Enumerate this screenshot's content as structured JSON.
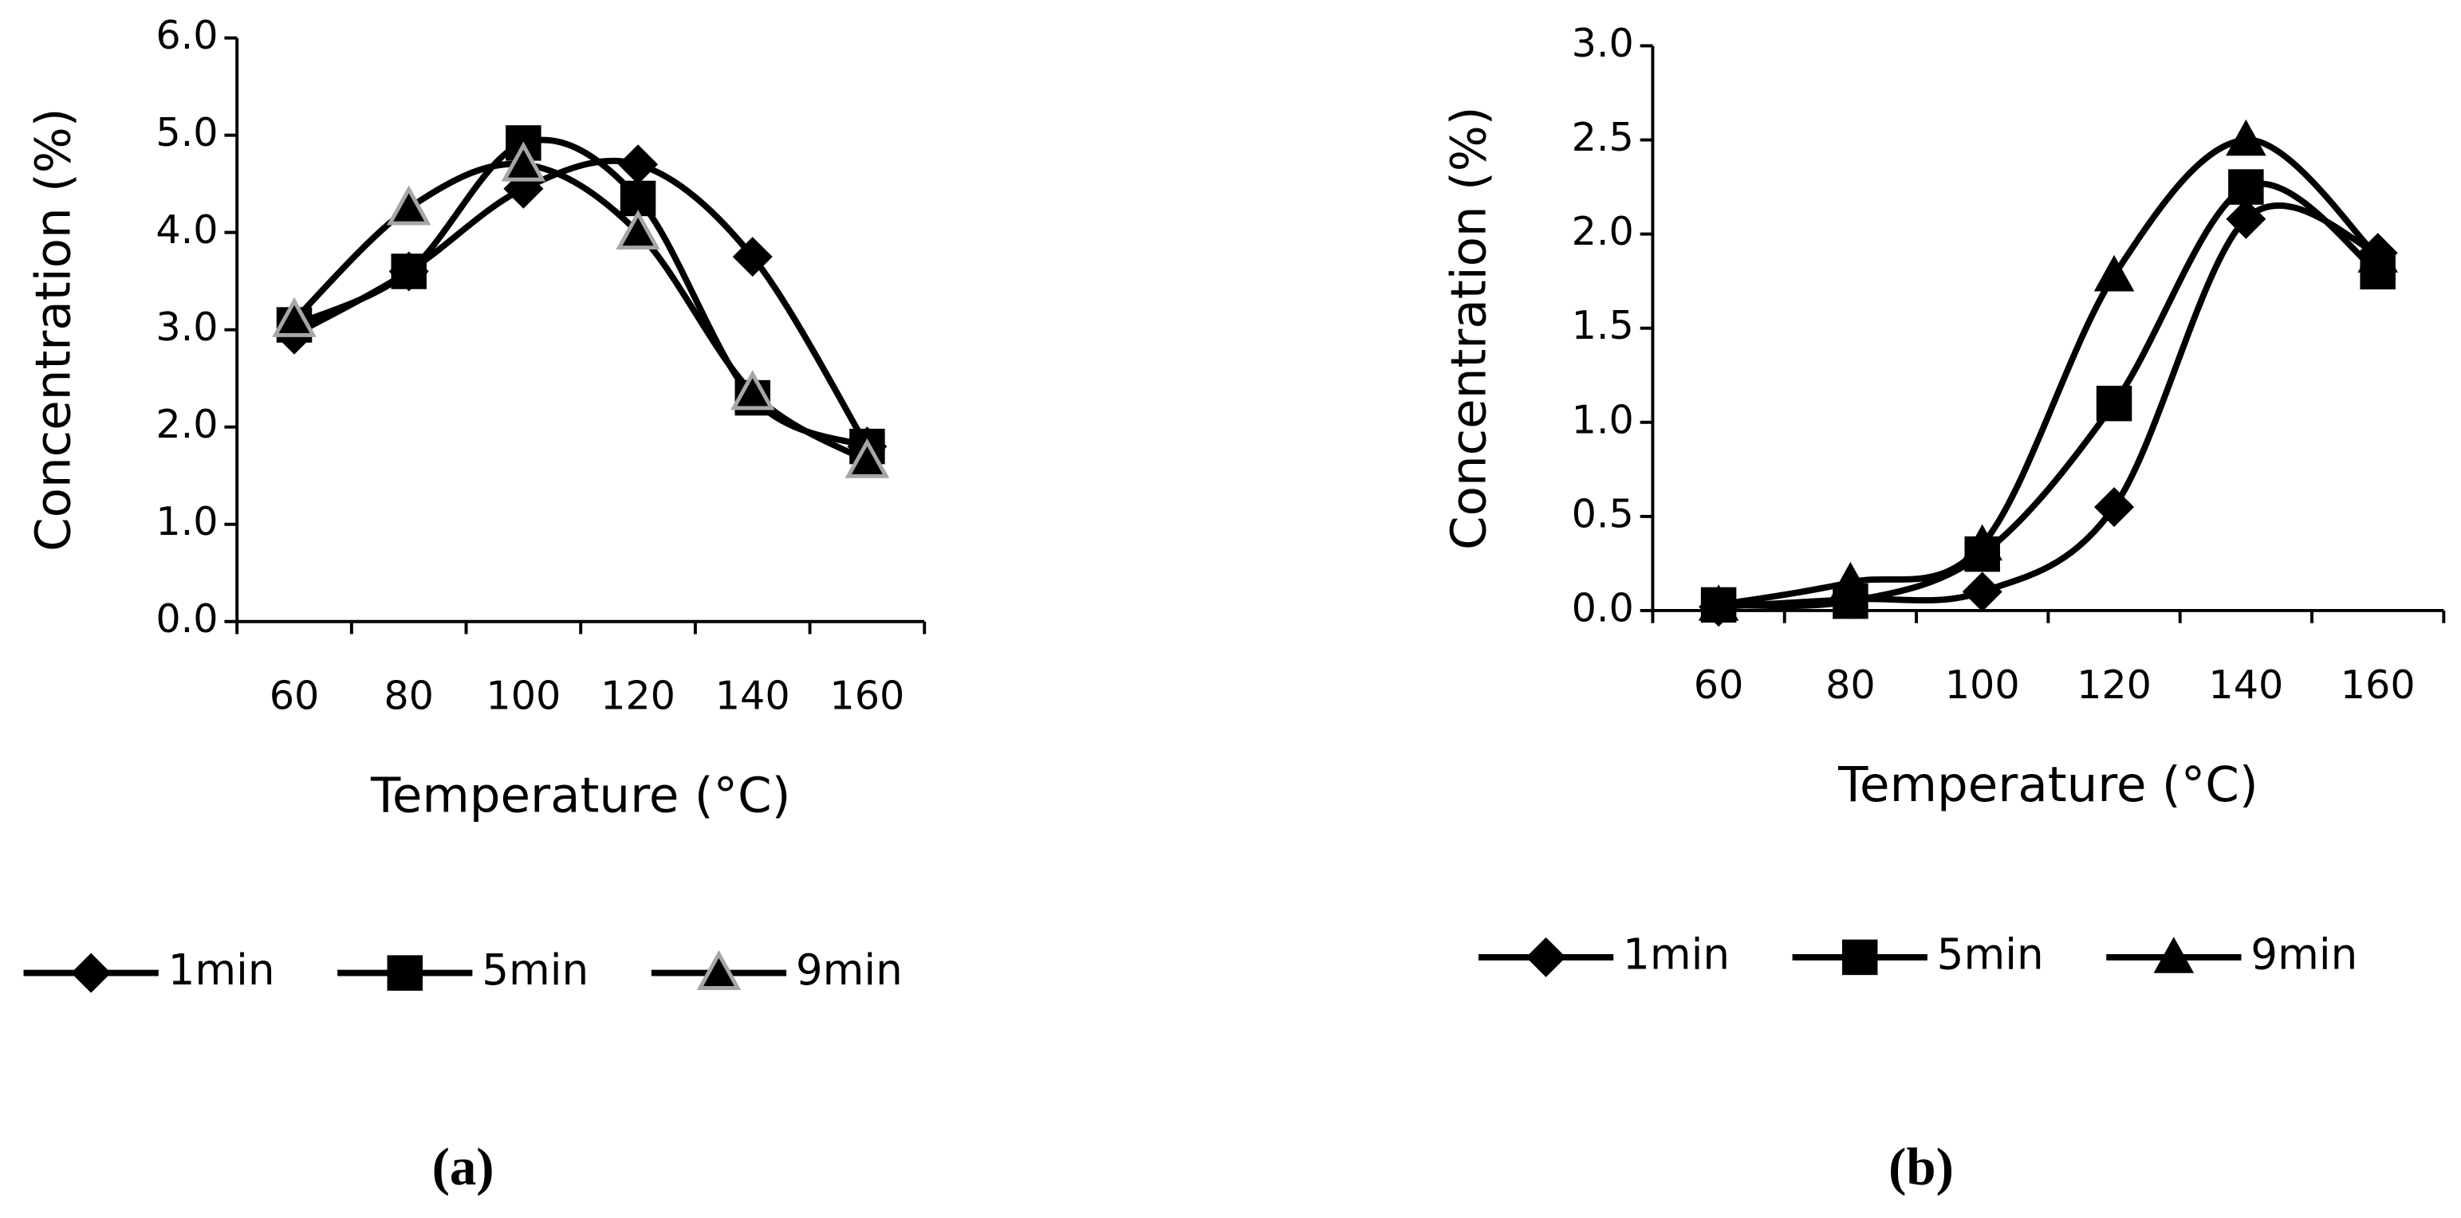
{
  "chart_data": [
    {
      "type": "line",
      "panel_label": "(a)",
      "x_label": "Temperature (°C)",
      "y_label": "Concentration (%)",
      "categories": [
        "60",
        "80",
        "100",
        "120",
        "140",
        "160"
      ],
      "ylim": [
        0,
        6
      ],
      "yticks": [
        {
          "value": 0,
          "label": "0.0"
        },
        {
          "value": 1,
          "label": "1.0"
        },
        {
          "value": 2,
          "label": "2.0"
        },
        {
          "value": 3,
          "label": "3.0"
        },
        {
          "value": 4,
          "label": "4.0"
        },
        {
          "value": 5,
          "label": "5.0"
        },
        {
          "value": 6,
          "label": "6.0"
        }
      ],
      "smooth": true,
      "legend": "bottom",
      "series": [
        {
          "name": "1min",
          "color": "#000000",
          "marker": "diamond",
          "values": [
            2.95,
            3.6,
            4.45,
            4.7,
            3.75,
            1.8
          ]
        },
        {
          "name": "5min",
          "color": "#000000",
          "marker": "square",
          "values": [
            3.05,
            3.6,
            4.92,
            4.35,
            2.3,
            1.8
          ]
        },
        {
          "name": "9min",
          "color": "#000000",
          "marker": "triangle",
          "edge_color": "#a6a6a6",
          "values": [
            3.1,
            4.25,
            4.7,
            4.0,
            2.35,
            1.65
          ]
        }
      ]
    },
    {
      "type": "line",
      "panel_label": "(b)",
      "x_label": "Temperature (°C)",
      "y_label": "Concentration (%)",
      "categories": [
        "60",
        "80",
        "100",
        "120",
        "140",
        "160"
      ],
      "ylim": [
        0,
        3
      ],
      "yticks": [
        {
          "value": 0,
          "label": "0.0"
        },
        {
          "value": 0.5,
          "label": "0.5"
        },
        {
          "value": 1,
          "label": "1.0"
        },
        {
          "value": 1.5,
          "label": "1.5"
        },
        {
          "value": 2,
          "label": "2.0"
        },
        {
          "value": 2.5,
          "label": "2.5"
        },
        {
          "value": 3,
          "label": "3.0"
        }
      ],
      "smooth": true,
      "legend": "bottom",
      "series": [
        {
          "name": "1min",
          "color": "#000000",
          "marker": "diamond",
          "values": [
            0.02,
            0.06,
            0.1,
            0.55,
            2.08,
            1.9
          ]
        },
        {
          "name": "5min",
          "color": "#000000",
          "marker": "square",
          "values": [
            0.03,
            0.05,
            0.3,
            1.1,
            2.25,
            1.8
          ]
        },
        {
          "name": "9min",
          "color": "#000000",
          "marker": "triangle",
          "values": [
            0.03,
            0.15,
            0.35,
            1.78,
            2.5,
            1.88
          ]
        }
      ]
    }
  ]
}
